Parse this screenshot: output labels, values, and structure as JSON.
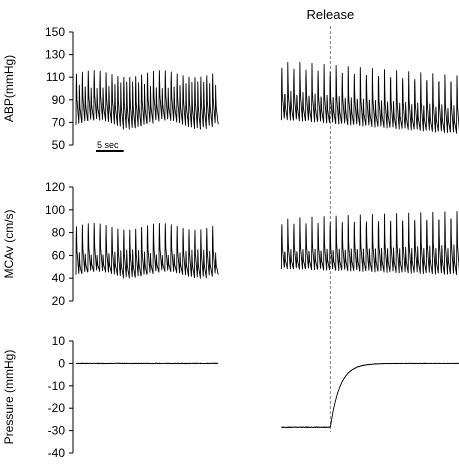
{
  "annotation": "Release",
  "scale_bar_label": "5 sec",
  "colors": {
    "trace": "#000000",
    "release_line": "#7f7f7f"
  },
  "chart_data": [
    {
      "type": "line",
      "ylabel": "ABP(mmHg)",
      "ylim": [
        50,
        150
      ],
      "yticks": [
        50,
        70,
        90,
        110,
        130,
        150
      ],
      "segments": [
        {
          "t": [
            0,
            18
          ],
          "model": "pulsatile",
          "beats": 24,
          "systolic": [
            116,
            122
          ],
          "diastolic": [
            64,
            72
          ],
          "mid_peak": [
            100,
            106
          ]
        },
        {
          "t": [
            26,
            52
          ],
          "model": "pulsatile",
          "beats": 34,
          "systolic_start": 124,
          "systolic_end": 113,
          "diastolic_start": 72,
          "diastolic_end": 58,
          "mid_peak_start": 100,
          "mid_peak_end": 82
        }
      ]
    },
    {
      "type": "line",
      "ylabel": "MCAv (cm/s)",
      "ylim": [
        20,
        120
      ],
      "yticks": [
        20,
        40,
        60,
        80,
        100,
        120
      ],
      "segments": [
        {
          "t": [
            0,
            18
          ],
          "model": "pulsatile",
          "beats": 24,
          "systolic": [
            88,
            94
          ],
          "diastolic": [
            40,
            46
          ],
          "mid_peak": [
            60,
            65
          ]
        },
        {
          "t": [
            26,
            52
          ],
          "model": "pulsatile",
          "beats": 34,
          "systolic_start": 92,
          "systolic_end": 104,
          "diastolic_start": 48,
          "diastolic_end": 42,
          "mid_peak_start": 66,
          "mid_peak_end": 70
        }
      ]
    },
    {
      "type": "line",
      "ylabel": "Pressure (mmHg)",
      "ylim": [
        -40,
        10
      ],
      "yticks": [
        -40,
        -30,
        -20,
        -10,
        0,
        10
      ],
      "segments": [
        {
          "t": [
            0,
            18
          ],
          "model": "constant",
          "value": 0
        },
        {
          "t": [
            26,
            52
          ],
          "model": "release",
          "before": -28.5,
          "after": 0,
          "release_t": 32.2,
          "tau": 1.2
        }
      ]
    }
  ],
  "release_t": 32.2,
  "scale_bar_seconds": 5
}
